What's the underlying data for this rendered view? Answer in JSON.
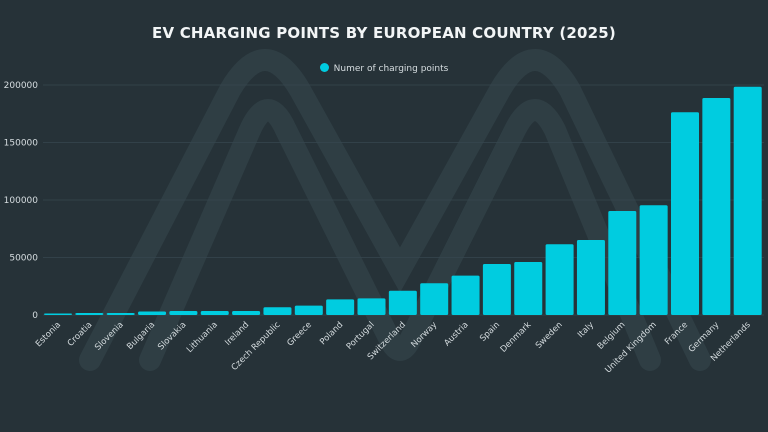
{
  "colors": {
    "background": "#263238",
    "bar": "#00cce0",
    "grid": "#37474f",
    "text": "#d6dde0"
  },
  "chart_data": {
    "type": "bar",
    "title": "EV CHARGING POINTS BY EUROPEAN COUNTRY (2025)",
    "xlabel": "",
    "ylabel": "",
    "ylim": [
      0,
      220000
    ],
    "yticks": [
      0,
      50000,
      100000,
      150000,
      200000
    ],
    "grid": true,
    "legend_position": "top-center",
    "categories": [
      "Estonia",
      "Croatia",
      "Slovenia",
      "Bulgaria",
      "Slovakia",
      "Lithuania",
      "Ireland",
      "Czech Republic",
      "Greece",
      "Poland",
      "Portugal",
      "Switzerland",
      "Norway",
      "Austria",
      "Spain",
      "Denmark",
      "Sweden",
      "Italy",
      "Belgium",
      "United Kingdom",
      "France",
      "Germany",
      "Netherlands"
    ],
    "series": [
      {
        "name": "Numer of charging points",
        "values": [
          1300,
          1700,
          1700,
          3000,
          3500,
          3500,
          3500,
          6700,
          8100,
          13600,
          14500,
          21100,
          27600,
          34200,
          44300,
          46100,
          61500,
          65200,
          90400,
          95400,
          176300,
          188700,
          198500
        ]
      }
    ]
  }
}
